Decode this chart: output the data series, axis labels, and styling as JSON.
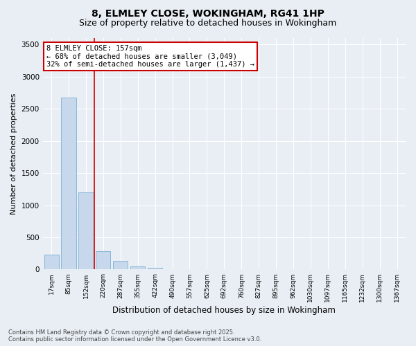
{
  "title1": "8, ELMLEY CLOSE, WOKINGHAM, RG41 1HP",
  "title2": "Size of property relative to detached houses in Wokingham",
  "xlabel": "Distribution of detached houses by size in Wokingham",
  "ylabel": "Number of detached properties",
  "categories": [
    "17sqm",
    "85sqm",
    "152sqm",
    "220sqm",
    "287sqm",
    "355sqm",
    "422sqm",
    "490sqm",
    "557sqm",
    "625sqm",
    "692sqm",
    "760sqm",
    "827sqm",
    "895sqm",
    "962sqm",
    "1030sqm",
    "1097sqm",
    "1165sqm",
    "1232sqm",
    "1300sqm",
    "1367sqm"
  ],
  "values": [
    230,
    2670,
    1200,
    280,
    130,
    50,
    30,
    10,
    0,
    0,
    0,
    0,
    0,
    0,
    0,
    0,
    0,
    0,
    0,
    0,
    0
  ],
  "bar_color": "#c8d8ec",
  "bar_edge_color": "#7bafd4",
  "vline_x": 2.5,
  "vline_color": "#cc0000",
  "annotation_text": "8 ELMLEY CLOSE: 157sqm\n← 68% of detached houses are smaller (3,049)\n32% of semi-detached houses are larger (1,437) →",
  "annotation_box_color": "#cc0000",
  "annotation_fontsize": 7.5,
  "ylim": [
    0,
    3600
  ],
  "yticks": [
    0,
    500,
    1000,
    1500,
    2000,
    2500,
    3000,
    3500
  ],
  "background_color": "#e8eef4",
  "plot_bg_color": "#e8eef4",
  "grid_color": "#ffffff",
  "footer_text": "Contains HM Land Registry data © Crown copyright and database right 2025.\nContains public sector information licensed under the Open Government Licence v3.0.",
  "title1_fontsize": 10,
  "title2_fontsize": 9,
  "xlabel_fontsize": 8.5,
  "ylabel_fontsize": 8
}
